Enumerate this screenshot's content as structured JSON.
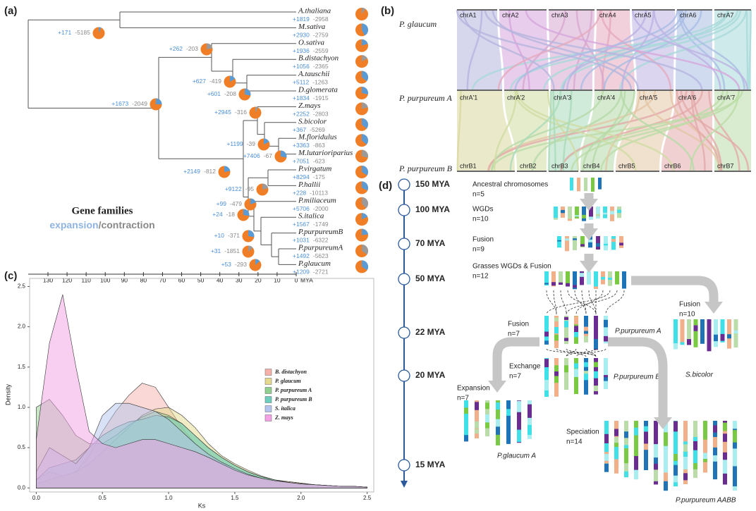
{
  "panel_a": {
    "label": "(a)",
    "species": [
      {
        "name": "A.thaliana",
        "gain": "+1819",
        "loss": "-2958"
      },
      {
        "name": "M.sativa",
        "gain": "+2930",
        "loss": "-2759"
      },
      {
        "name": "O.sativa",
        "gain": "+1936",
        "loss": "-2559"
      },
      {
        "name": "B.distachyon",
        "gain": "+1056",
        "loss": "-2365"
      },
      {
        "name": "A.tauschii",
        "gain": "+5112",
        "loss": "-1263"
      },
      {
        "name": "D.glomerata",
        "gain": "+1834",
        "loss": "-1915"
      },
      {
        "name": "Z.mays",
        "gain": "+2252",
        "loss": "-2803"
      },
      {
        "name": "S.bicolor",
        "gain": "+367",
        "loss": "-5269"
      },
      {
        "name": "M.floridulus",
        "gain": "+3363",
        "loss": "-863"
      },
      {
        "name": "M.lutarioriparius",
        "gain": "+7051",
        "loss": "-623"
      },
      {
        "name": "P.virgatum",
        "gain": "+8294",
        "loss": "-175"
      },
      {
        "name": "P.hallii",
        "gain": "+228",
        "loss": "-10113"
      },
      {
        "name": "P.miliaceum",
        "gain": "+5706",
        "loss": "-2000"
      },
      {
        "name": "S.italica",
        "gain": "+1567",
        "loss": "-1749"
      },
      {
        "name": "P.purpureumB",
        "gain": "+1031",
        "loss": "-6322"
      },
      {
        "name": "P.purpureumA",
        "gain": "+1492",
        "loss": "-5623"
      },
      {
        "name": "P.glaucum",
        "gain": "+1209",
        "loss": "-2721"
      }
    ],
    "nodes": [
      {
        "gain": "+171",
        "loss": "-5185"
      },
      {
        "gain": "+262",
        "loss": "-203"
      },
      {
        "gain": "+627",
        "loss": "-419"
      },
      {
        "gain": "+601",
        "loss": "-208"
      },
      {
        "gain": "+1673",
        "loss": "-2049"
      },
      {
        "gain": "+2945",
        "loss": "-316"
      },
      {
        "gain": "+1199",
        "loss": "-39"
      },
      {
        "gain": "+7406",
        "loss": "-67"
      },
      {
        "gain": "+2149",
        "loss": "-812"
      },
      {
        "gain": "+9122",
        "loss": "-95"
      },
      {
        "gain": "+99",
        "loss": "-479"
      },
      {
        "gain": "+24",
        "loss": "-18"
      },
      {
        "gain": "+10",
        "loss": "-371"
      },
      {
        "gain": "+31",
        "loss": "-1851"
      },
      {
        "gain": "+53",
        "loss": "-293"
      }
    ],
    "axis": {
      "ticks": [
        130,
        120,
        110,
        100,
        90,
        80,
        70,
        60,
        50,
        40,
        30,
        20,
        10,
        0
      ],
      "unit": "MYA"
    },
    "legend": {
      "title": "Gene families",
      "expansion": "expansion",
      "contraction": "/contraction"
    }
  },
  "panel_b": {
    "label": "(b)",
    "genomes": [
      {
        "name": "P. glaucum",
        "chromosomes": [
          "chrA1",
          "chrA2",
          "chrA3",
          "chrA4",
          "chrA5",
          "chrA6",
          "chrA7"
        ]
      },
      {
        "name": "P. purpureum A",
        "chromosomes": [
          "chrA'1",
          "chrA'2",
          "chrA'3",
          "chrA'4",
          "chrA'5",
          "chrA'6",
          "chrA'7"
        ]
      },
      {
        "name": "P. purpureum B",
        "chromosomes": [
          "chrB1",
          "chrB2",
          "chrB3",
          "chrB4",
          "chrB5",
          "chrB6",
          "chrB7"
        ]
      }
    ]
  },
  "chart_data": {
    "type": "area",
    "label": "(c)",
    "x_label": "Ks",
    "y_label": "Density",
    "x": [
      0,
      0.1,
      0.2,
      0.3,
      0.4,
      0.5,
      0.6,
      0.7,
      0.8,
      0.9,
      1.0,
      1.1,
      1.2,
      1.3,
      1.4,
      1.5,
      1.6,
      1.7,
      1.8,
      1.9,
      2.0,
      2.1,
      2.2,
      2.3,
      2.4,
      2.5
    ],
    "series": [
      {
        "name": "B. distachyon",
        "color": "#f4b2ab",
        "values": [
          0.1,
          0.2,
          0.15,
          0.2,
          0.4,
          0.7,
          0.95,
          1.15,
          1.3,
          1.25,
          1.0,
          0.75,
          0.55,
          0.4,
          0.3,
          0.22,
          0.15,
          0.1,
          0.08,
          0.08,
          0.06,
          0.04,
          0.03,
          0.02,
          0.02,
          0.01
        ]
      },
      {
        "name": "P. glaucum",
        "color": "#e6d98e",
        "values": [
          0.05,
          0.1,
          0.15,
          0.2,
          0.3,
          0.45,
          0.6,
          0.75,
          0.9,
          0.98,
          1.0,
          0.9,
          0.75,
          0.55,
          0.4,
          0.3,
          0.22,
          0.15,
          0.1,
          0.08,
          0.06,
          0.04,
          0.03,
          0.02,
          0.02,
          0.01
        ]
      },
      {
        "name": "P. purpureum A",
        "color": "#8fcf8f",
        "values": [
          1.0,
          1.1,
          0.9,
          0.65,
          0.55,
          0.55,
          0.65,
          0.78,
          0.88,
          0.95,
          0.9,
          0.8,
          0.65,
          0.5,
          0.38,
          0.28,
          0.2,
          0.14,
          0.1,
          0.07,
          0.05,
          0.04,
          0.03,
          0.02,
          0.02,
          0.01
        ]
      },
      {
        "name": "P. purpureum B",
        "color": "#6fcdbf",
        "values": [
          0.1,
          0.25,
          0.3,
          0.35,
          0.5,
          0.65,
          0.75,
          0.82,
          0.85,
          0.9,
          0.88,
          0.8,
          0.65,
          0.5,
          0.38,
          0.28,
          0.2,
          0.14,
          0.1,
          0.07,
          0.05,
          0.04,
          0.03,
          0.02,
          0.02,
          0.01
        ]
      },
      {
        "name": "S. italica",
        "color": "#b4c4ee",
        "values": [
          0.2,
          0.5,
          0.4,
          0.3,
          0.5,
          0.9,
          1.05,
          1.05,
          1.0,
          0.95,
          0.85,
          0.7,
          0.55,
          0.42,
          0.32,
          0.24,
          0.17,
          0.12,
          0.09,
          0.07,
          0.05,
          0.04,
          0.03,
          0.02,
          0.02,
          0.01
        ]
      },
      {
        "name": "Z. mays",
        "color": "#f3a0e4",
        "values": [
          0.6,
          1.8,
          2.4,
          1.5,
          0.7,
          0.55,
          0.5,
          0.55,
          0.6,
          0.6,
          0.55,
          0.5,
          0.45,
          0.38,
          0.3,
          0.22,
          0.16,
          0.12,
          0.09,
          0.07,
          0.05,
          0.04,
          0.03,
          0.02,
          0.02,
          0.01
        ]
      }
    ],
    "xlim": [
      -0.05,
      2.55
    ],
    "ylim": [
      -0.05,
      2.6
    ],
    "xticks": [
      {
        "value": 0,
        "label": "0.0"
      },
      {
        "value": 0.5,
        "label": "0.5"
      },
      {
        "value": 1,
        "label": "1.0"
      },
      {
        "value": 1.5,
        "label": "1.5"
      },
      {
        "value": 2,
        "label": "2.0"
      },
      {
        "value": 2.5,
        "label": "2.5"
      }
    ],
    "yticks": [
      {
        "value": 0,
        "label": "0.0"
      },
      {
        "value": 0.5,
        "label": "0.5"
      },
      {
        "value": 1,
        "label": "1.0"
      },
      {
        "value": 1.5,
        "label": "1.5"
      },
      {
        "value": 2,
        "label": "2.0"
      },
      {
        "value": 2.5,
        "label": "2.5"
      }
    ],
    "legend": "right"
  },
  "panel_d": {
    "label": "(d)",
    "timeline": [
      "150 MYA",
      "100 MYA",
      "70 MYA",
      "50 MYA",
      "22 MYA",
      "20 MYA",
      "15 MYA"
    ],
    "steps": [
      {
        "title": "Ancestral chromosomes",
        "n": "n=5"
      },
      {
        "title": "WGDs",
        "n": "n=10"
      },
      {
        "title": "Fusion",
        "n": "n=9"
      },
      {
        "title": "Grasses WGDs & Fusion",
        "n": "n=12"
      },
      {
        "title": "Fusion",
        "n": "n=7"
      },
      {
        "title": "Exchange",
        "n": "n=7"
      },
      {
        "title": "Expansion",
        "n": "n=7"
      },
      {
        "title": "Fusion",
        "n": "n=10"
      },
      {
        "title": "Speciation",
        "n": "n=14"
      }
    ],
    "labels": [
      "P.purpureum A",
      "P.purpureum B",
      "S.bicolor",
      "P.glaucum A",
      "P.purpureum AABB"
    ]
  }
}
